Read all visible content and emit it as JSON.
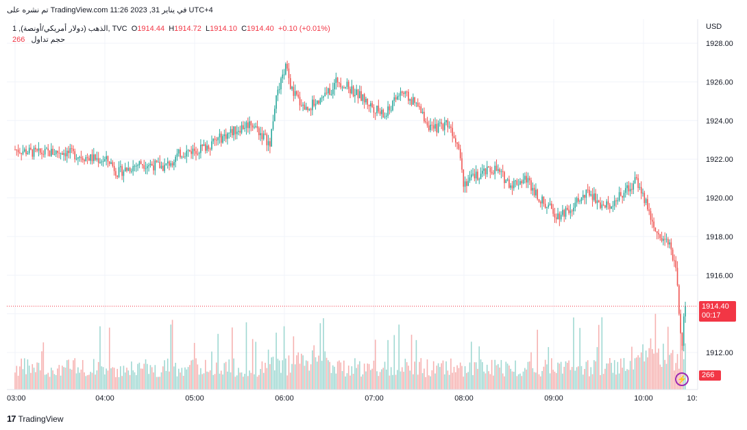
{
  "header": {
    "caption": "تم نشره على TradingView.com في يناير 31, 2023 11:26 UTC+4",
    "symbol": "الذهب (دولار أمريكي/أونصة), 1, TVC",
    "open_label": "O",
    "open": "1914.44",
    "high_label": "H",
    "high": "1914.72",
    "low_label": "L",
    "low": "1914.10",
    "close_label": "C",
    "close": "1914.40",
    "change": "+0.10 (+0.01%)",
    "volume_label": "حجم تداول",
    "volume": "266"
  },
  "axis": {
    "currency": "USD",
    "last_price": "1914.40",
    "countdown": "00:17",
    "last_volume": "266"
  },
  "brand": {
    "logo": "17",
    "name": "TradingView"
  },
  "colors": {
    "up": "#26a69a",
    "down": "#ef5350",
    "up_vol": "#9fd8d2",
    "down_vol": "#f6b1b0",
    "grid": "#f0f3fa",
    "accent": "#f23645"
  },
  "chart_data": {
    "type": "candlestick",
    "title": "الذهب (دولار أمريكي/أونصة), 1, TVC",
    "ylabel": "USD",
    "ylim": [
      1910.7,
      1929.0
    ],
    "yticks": [
      1912,
      1914,
      1916,
      1918,
      1920,
      1922,
      1924,
      1926,
      1928
    ],
    "yticklabels": [
      "1912.00",
      "1914.00",
      "1916.00",
      "1918.00",
      "1920.00",
      "1922.00",
      "1924.00",
      "1926.00",
      "1928.00"
    ],
    "xlim": [
      "03:00",
      "10:06"
    ],
    "xticks": [
      "03:00",
      "04:00",
      "05:00",
      "06:00",
      "07:00",
      "08:00",
      "09:00",
      "10:00",
      "10:"
    ],
    "last_price": 1914.4,
    "grid": true,
    "close_path": [
      {
        "t": "03:00",
        "price": 1922.5
      },
      {
        "t": "03:15",
        "price": 1922.3
      },
      {
        "t": "03:30",
        "price": 1922.4
      },
      {
        "t": "03:45",
        "price": 1922.1
      },
      {
        "t": "04:00",
        "price": 1921.9
      },
      {
        "t": "04:05",
        "price": 1921.3
      },
      {
        "t": "04:20",
        "price": 1921.8
      },
      {
        "t": "04:35",
        "price": 1921.6
      },
      {
        "t": "04:45",
        "price": 1922.3
      },
      {
        "t": "05:00",
        "price": 1922.6
      },
      {
        "t": "05:15",
        "price": 1923.3
      },
      {
        "t": "05:30",
        "price": 1923.9
      },
      {
        "t": "05:42",
        "price": 1922.8
      },
      {
        "t": "05:45",
        "price": 1924.8
      },
      {
        "t": "05:52",
        "price": 1926.8
      },
      {
        "t": "05:56",
        "price": 1925.5
      },
      {
        "t": "06:05",
        "price": 1924.6
      },
      {
        "t": "06:20",
        "price": 1925.5
      },
      {
        "t": "06:25",
        "price": 1926.1
      },
      {
        "t": "06:40",
        "price": 1925.2
      },
      {
        "t": "06:55",
        "price": 1924.2
      },
      {
        "t": "07:05",
        "price": 1925.5
      },
      {
        "t": "07:15",
        "price": 1924.8
      },
      {
        "t": "07:25",
        "price": 1923.5
      },
      {
        "t": "07:35",
        "price": 1923.9
      },
      {
        "t": "07:42",
        "price": 1922.8
      },
      {
        "t": "07:45",
        "price": 1920.8
      },
      {
        "t": "07:55",
        "price": 1921.2
      },
      {
        "t": "08:05",
        "price": 1921.5
      },
      {
        "t": "08:15",
        "price": 1920.7
      },
      {
        "t": "08:25",
        "price": 1921.0
      },
      {
        "t": "08:35",
        "price": 1919.8
      },
      {
        "t": "08:45",
        "price": 1919.1
      },
      {
        "t": "08:55",
        "price": 1919.6
      },
      {
        "t": "09:05",
        "price": 1920.3
      },
      {
        "t": "09:15",
        "price": 1919.5
      },
      {
        "t": "09:25",
        "price": 1920.1
      },
      {
        "t": "09:35",
        "price": 1920.9
      },
      {
        "t": "09:42",
        "price": 1919.6
      },
      {
        "t": "09:47",
        "price": 1918.2
      },
      {
        "t": "09:55",
        "price": 1917.8
      },
      {
        "t": "10:00",
        "price": 1916.5
      },
      {
        "t": "10:02",
        "price": 1914.2
      },
      {
        "t": "10:03",
        "price": 1912.8
      },
      {
        "t": "10:04",
        "price": 1912.3
      },
      {
        "t": "10:05",
        "price": 1913.9
      },
      {
        "t": "10:06",
        "price": 1914.4
      }
    ],
    "volume": {
      "last": 266,
      "scale": "relative"
    }
  }
}
